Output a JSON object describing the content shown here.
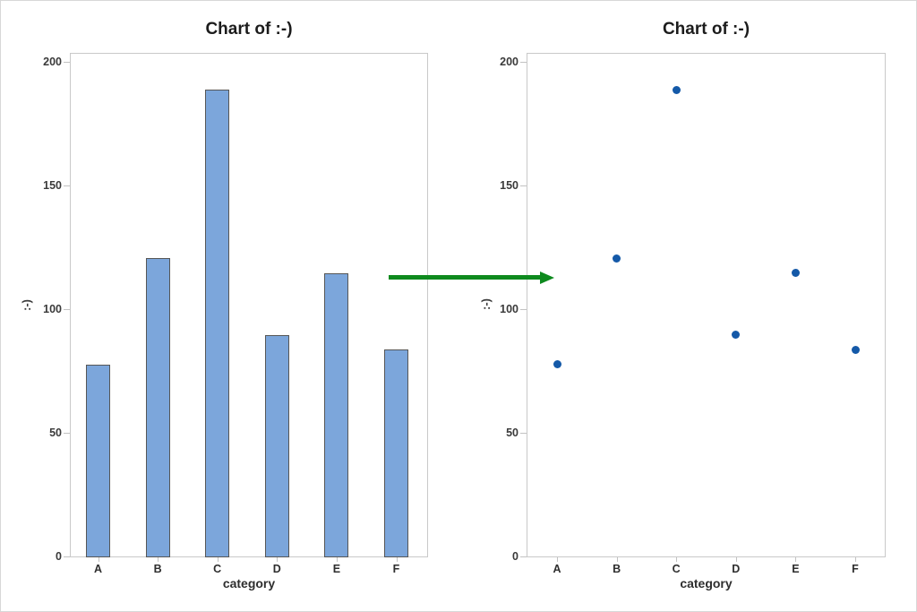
{
  "figure": {
    "background": "#ffffff",
    "border_color": "#d7d7d7",
    "axis_line_color": "#c9c9c9",
    "axis_text_color": "#3a3a3a"
  },
  "chart_data": [
    {
      "type": "bar",
      "title": "Chart of :-)",
      "categories": [
        "A",
        "B",
        "C",
        "D",
        "E",
        "F"
      ],
      "values": [
        78,
        121,
        189,
        90,
        115,
        84
      ],
      "xlabel": "category",
      "ylabel": ":-)",
      "yticks": [
        0,
        50,
        100,
        150,
        200
      ],
      "ylim": [
        0,
        204
      ],
      "grid": false,
      "legend": false,
      "bar_fill": "#7CA6DB",
      "bar_stroke": "#565656"
    },
    {
      "type": "scatter",
      "title": "Chart of :-)",
      "categories": [
        "A",
        "B",
        "C",
        "D",
        "E",
        "F"
      ],
      "values": [
        78,
        121,
        189,
        90,
        115,
        84
      ],
      "xlabel": "category",
      "ylabel": ":-)",
      "yticks": [
        0,
        50,
        100,
        150,
        200
      ],
      "ylim": [
        0,
        204
      ],
      "grid": false,
      "legend": false,
      "point_color": "#1459A8"
    }
  ],
  "annotation_arrow": {
    "color": "#0E8A1E",
    "direction": "right"
  }
}
